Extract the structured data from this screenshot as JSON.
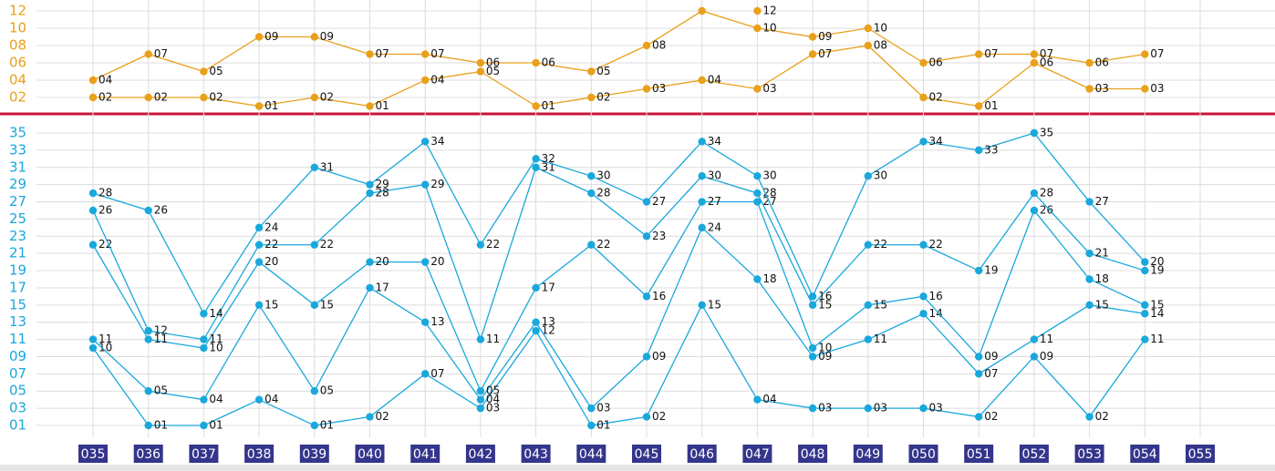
{
  "chart_data": [
    {
      "type": "line",
      "color": "#e9a01a",
      "ylim": [
        1,
        12
      ],
      "yticks": [
        {
          "value": 2,
          "label": "02"
        },
        {
          "value": 4,
          "label": "04"
        },
        {
          "value": 6,
          "label": "06"
        },
        {
          "value": 8,
          "label": "08"
        },
        10,
        12
      ],
      "grid": true,
      "series": [
        {
          "color": "#e9a01a",
          "values": [
            2,
            2,
            2,
            1,
            2,
            1,
            4,
            5,
            1,
            2,
            3,
            4,
            3,
            7,
            8,
            2,
            1,
            6,
            3,
            3,
            null
          ],
          "value_labels": [
            "02",
            "02",
            "02",
            "01",
            "02",
            "01",
            "04",
            "05",
            "01",
            "02",
            "03",
            "04",
            "03",
            "07",
            "08",
            "02",
            "01",
            "06",
            "03",
            "03",
            null
          ]
        },
        {
          "color": "#e9a01a",
          "values": [
            4,
            7,
            5,
            9,
            9,
            7,
            7,
            6,
            6,
            5,
            8,
            12,
            10,
            9,
            10,
            6,
            7,
            7,
            6,
            7,
            null
          ],
          "value_labels": [
            "04",
            "07",
            "05",
            "09",
            "09",
            "07",
            "07",
            "06",
            "06",
            "05",
            "08",
            null,
            "10",
            "09",
            "10",
            "06",
            "07",
            "07",
            "06",
            "07",
            null
          ]
        },
        {
          "color": "#e9a01a",
          "values": [
            null,
            null,
            null,
            null,
            null,
            null,
            null,
            null,
            null,
            null,
            null,
            null,
            12,
            null,
            null,
            null,
            null,
            null,
            null,
            null,
            null
          ],
          "value_labels": [
            null,
            null,
            null,
            null,
            null,
            null,
            null,
            null,
            null,
            null,
            null,
            null,
            "12",
            null,
            null,
            null,
            null,
            null,
            null,
            null,
            null
          ]
        }
      ]
    },
    {
      "type": "line",
      "color": "#19a8dc",
      "ylim": [
        1,
        35
      ],
      "yticks": [
        {
          "value": 1,
          "label": "01"
        },
        {
          "value": 3,
          "label": "03"
        },
        {
          "value": 5,
          "label": "05"
        },
        {
          "value": 7,
          "label": "07"
        },
        {
          "value": 9,
          "label": "09"
        },
        11,
        13,
        15,
        17,
        19,
        21,
        23,
        25,
        27,
        29,
        31,
        33,
        35
      ],
      "grid": true,
      "categories": [
        "035",
        "036",
        "037",
        "038",
        "039",
        "040",
        "041",
        "042",
        "043",
        "044",
        "045",
        "046",
        "047",
        "048",
        "049",
        "050",
        "051",
        "052",
        "053",
        "054",
        "055"
      ],
      "series": [
        {
          "color": "#19a8dc",
          "values": [
            10,
            1,
            1,
            4,
            1,
            2,
            7,
            3,
            12,
            1,
            2,
            15,
            4,
            3,
            3,
            3,
            2,
            9,
            2,
            11,
            null
          ],
          "value_labels": [
            "10",
            "01",
            "01",
            "04",
            "01",
            "02",
            "07",
            "03",
            "12",
            "01",
            "02",
            "15",
            "04",
            "03",
            "03",
            "03",
            "02",
            "09",
            "02",
            "11",
            null
          ]
        },
        {
          "color": "#19a8dc",
          "values": [
            11,
            5,
            4,
            15,
            5,
            17,
            13,
            4,
            13,
            3,
            9,
            24,
            18,
            9,
            11,
            14,
            7,
            11,
            15,
            14,
            null
          ],
          "value_labels": [
            "11",
            "05",
            "04",
            "15",
            "05",
            "17",
            "13",
            "04",
            "13",
            "03",
            "09",
            "24",
            "18",
            "09",
            "11",
            "14",
            "07",
            "11",
            "15",
            "14",
            null
          ]
        },
        {
          "color": "#19a8dc",
          "values": [
            22,
            11,
            10,
            20,
            15,
            20,
            20,
            5,
            17,
            22,
            16,
            27,
            27,
            10,
            15,
            16,
            9,
            26,
            18,
            15,
            null
          ],
          "value_labels": [
            "22",
            "11",
            "10",
            "20",
            "15",
            "20",
            "20",
            "05",
            "17",
            "22",
            "16",
            "27",
            "27",
            "10",
            "15",
            "16",
            "09",
            "26",
            "18",
            "15",
            null
          ]
        },
        {
          "color": "#19a8dc",
          "values": [
            26,
            12,
            11,
            22,
            22,
            28,
            29,
            11,
            31,
            28,
            23,
            30,
            28,
            15,
            22,
            22,
            19,
            28,
            21,
            19,
            null
          ],
          "value_labels": [
            "26",
            "12",
            "11",
            "22",
            "22",
            "28",
            "29",
            "11",
            "31",
            "28",
            "23",
            "30",
            "28",
            "15",
            "22",
            "22",
            "19",
            "28",
            "21",
            "19",
            null
          ]
        },
        {
          "color": "#19a8dc",
          "values": [
            28,
            26,
            14,
            24,
            31,
            29,
            34,
            22,
            32,
            30,
            27,
            34,
            30,
            16,
            30,
            34,
            33,
            35,
            27,
            20,
            null
          ],
          "value_labels": [
            "28",
            "26",
            "14",
            "24",
            "31",
            "29",
            "34",
            "22",
            "32",
            "30",
            "27",
            "34",
            "30",
            "16",
            "30",
            "34",
            "33",
            "35",
            "27",
            "20",
            null
          ]
        }
      ]
    }
  ]
}
